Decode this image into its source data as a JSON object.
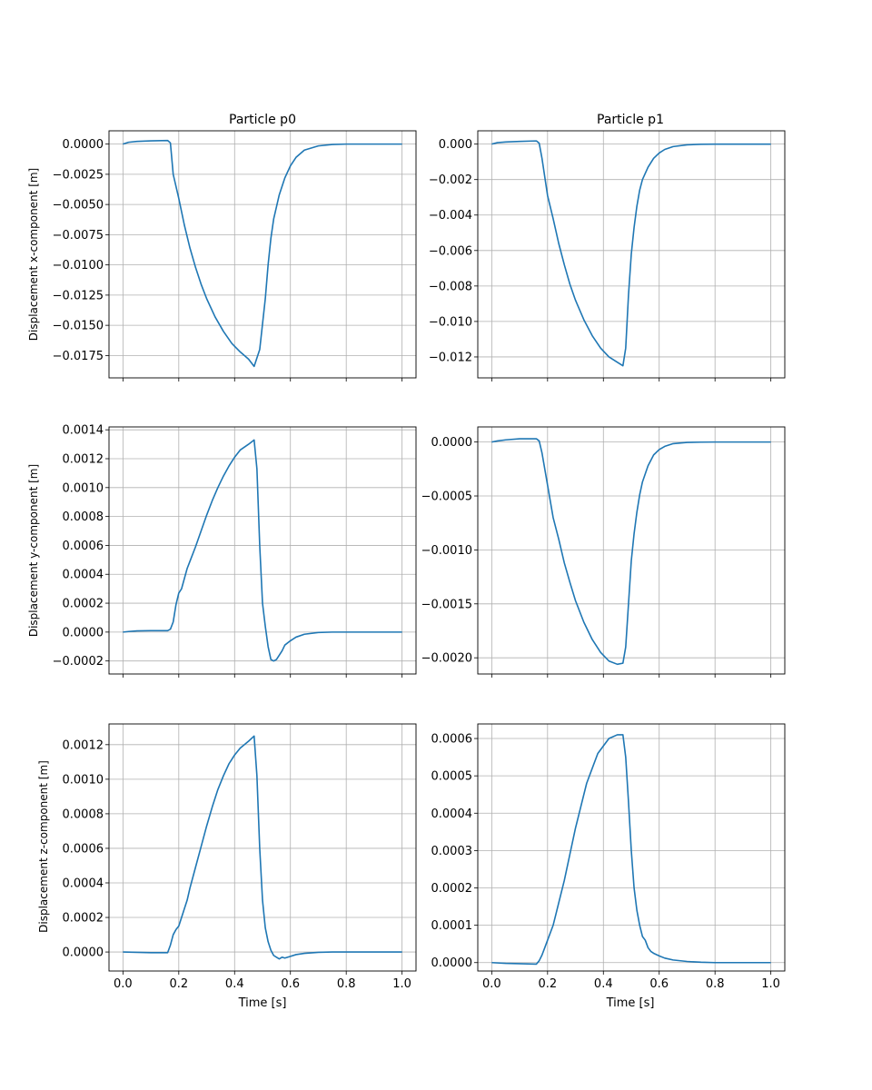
{
  "figure": {
    "line_color": "#1f77b4",
    "grid_color": "#b0b0b0"
  },
  "chart_data": [
    {
      "type": "line",
      "title": "Particle p0",
      "xlabel": "",
      "ylabel": "Displacement x-component [m]",
      "xlim": [
        -0.05,
        1.05
      ],
      "ylim": [
        -0.01935,
        0.0011
      ],
      "grid": true,
      "x_ticks": [
        "0.0",
        "0.2",
        "0.4",
        "0.6",
        "0.8",
        "1.0"
      ],
      "x_tick_labels_visible": false,
      "y_ticks": [
        "0.0000",
        "−0.0025",
        "−0.0050",
        "−0.0075",
        "−0.0100",
        "−0.0125",
        "−0.0150",
        "−0.0175"
      ],
      "y_tick_values": [
        0.0,
        -0.0025,
        -0.005,
        -0.0075,
        -0.01,
        -0.0125,
        -0.015,
        -0.0175
      ],
      "series": [
        {
          "x": [
            0.0,
            0.02,
            0.05,
            0.1,
            0.16,
            0.17,
            0.18,
            0.2,
            0.22,
            0.24,
            0.26,
            0.28,
            0.3,
            0.33,
            0.36,
            0.39,
            0.42,
            0.45,
            0.47,
            0.49,
            0.51,
            0.52,
            0.53,
            0.54,
            0.56,
            0.58,
            0.6,
            0.62,
            0.65,
            0.7,
            0.75,
            0.8,
            0.9,
            1.0
          ],
          "y": [
            0.0,
            0.00015,
            0.00022,
            0.00027,
            0.0003,
            0.0001,
            -0.0025,
            -0.0045,
            -0.0067,
            -0.0086,
            -0.0102,
            -0.0116,
            -0.0128,
            -0.0143,
            -0.0155,
            -0.0165,
            -0.0172,
            -0.0178,
            -0.0184,
            -0.017,
            -0.0128,
            -0.01,
            -0.0078,
            -0.0062,
            -0.0042,
            -0.0028,
            -0.0018,
            -0.0011,
            -0.0005,
            -0.00015,
            -3e-05,
            0.0,
            0.0,
            0.0
          ]
        }
      ]
    },
    {
      "type": "line",
      "title": "Particle p1",
      "xlabel": "",
      "ylabel": "",
      "xlim": [
        -0.05,
        1.05
      ],
      "ylim": [
        -0.01318,
        0.00075
      ],
      "grid": true,
      "x_ticks": [
        "0.0",
        "0.2",
        "0.4",
        "0.6",
        "0.8",
        "1.0"
      ],
      "x_tick_labels_visible": false,
      "y_ticks": [
        "0.000",
        "−0.002",
        "−0.004",
        "−0.006",
        "−0.008",
        "−0.010",
        "−0.012"
      ],
      "y_tick_values": [
        0.0,
        -0.002,
        -0.004,
        -0.006,
        -0.008,
        -0.01,
        -0.012
      ],
      "series": [
        {
          "x": [
            0.0,
            0.02,
            0.05,
            0.1,
            0.16,
            0.17,
            0.18,
            0.2,
            0.22,
            0.24,
            0.26,
            0.28,
            0.3,
            0.33,
            0.36,
            0.39,
            0.42,
            0.45,
            0.47,
            0.48,
            0.49,
            0.5,
            0.51,
            0.52,
            0.53,
            0.54,
            0.56,
            0.58,
            0.6,
            0.62,
            0.65,
            0.7,
            0.75,
            0.8,
            0.9,
            1.0
          ],
          "y": [
            0.0,
            8e-05,
            0.00012,
            0.00015,
            0.00018,
            5e-05,
            -0.0008,
            -0.0029,
            -0.0042,
            -0.0056,
            -0.0068,
            -0.0079,
            -0.0088,
            -0.0099,
            -0.0108,
            -0.0115,
            -0.012,
            -0.0123,
            -0.0125,
            -0.0115,
            -0.0085,
            -0.0062,
            -0.0047,
            -0.0035,
            -0.0026,
            -0.002,
            -0.0013,
            -0.0008,
            -0.0005,
            -0.0003,
            -0.00014,
            -4e-05,
            -1e-05,
            0.0,
            0.0,
            0.0
          ]
        }
      ]
    },
    {
      "type": "line",
      "title": "",
      "xlabel": "",
      "ylabel": "Displacement y-component [m]",
      "xlim": [
        -0.05,
        1.05
      ],
      "ylim": [
        -0.00029,
        0.00142
      ],
      "grid": true,
      "x_ticks": [
        "0.0",
        "0.2",
        "0.4",
        "0.6",
        "0.8",
        "1.0"
      ],
      "x_tick_labels_visible": false,
      "y_ticks": [
        "0.0014",
        "0.0012",
        "0.0010",
        "0.0008",
        "0.0006",
        "0.0004",
        "0.0002",
        "0.0000",
        "−0.0002"
      ],
      "y_tick_values": [
        0.0014,
        0.0012,
        0.001,
        0.0008,
        0.0006,
        0.0004,
        0.0002,
        0.0,
        -0.0002
      ],
      "series": [
        {
          "x": [
            0.0,
            0.02,
            0.05,
            0.1,
            0.16,
            0.17,
            0.18,
            0.19,
            0.2,
            0.21,
            0.22,
            0.23,
            0.24,
            0.26,
            0.28,
            0.3,
            0.32,
            0.34,
            0.36,
            0.38,
            0.4,
            0.42,
            0.45,
            0.47,
            0.48,
            0.49,
            0.5,
            0.51,
            0.52,
            0.53,
            0.54,
            0.55,
            0.56,
            0.57,
            0.58,
            0.6,
            0.62,
            0.65,
            0.7,
            0.75,
            0.8,
            0.9,
            1.0
          ],
          "y": [
            0.0,
            4e-06,
            8e-06,
            1e-05,
            1e-05,
            2e-05,
            7e-05,
            0.00019,
            0.00027,
            0.0003,
            0.00037,
            0.00044,
            0.00049,
            0.00059,
            0.0007,
            0.00081,
            0.00091,
            0.001,
            0.00108,
            0.00115,
            0.00121,
            0.00126,
            0.0013,
            0.00133,
            0.00113,
            0.0006,
            0.0002,
            4e-05,
            -0.0001,
            -0.00019,
            -0.0002,
            -0.00019,
            -0.00016,
            -0.00013,
            -9e-05,
            -6e-05,
            -3.5e-05,
            -1.5e-05,
            -3e-06,
            0.0,
            0.0,
            0.0,
            0.0
          ]
        }
      ]
    },
    {
      "type": "line",
      "title": "",
      "xlabel": "",
      "ylabel": "",
      "xlim": [
        -0.05,
        1.05
      ],
      "ylim": [
        -0.00215,
        0.00014
      ],
      "grid": true,
      "x_ticks": [
        "0.0",
        "0.2",
        "0.4",
        "0.6",
        "0.8",
        "1.0"
      ],
      "x_tick_labels_visible": false,
      "y_ticks": [
        "0.0000",
        "−0.0005",
        "−0.0010",
        "−0.0015",
        "−0.0020"
      ],
      "y_tick_values": [
        0.0,
        -0.0005,
        -0.001,
        -0.0015,
        -0.002
      ],
      "series": [
        {
          "x": [
            0.0,
            0.02,
            0.05,
            0.1,
            0.16,
            0.17,
            0.18,
            0.2,
            0.22,
            0.24,
            0.26,
            0.28,
            0.3,
            0.33,
            0.36,
            0.39,
            0.42,
            0.45,
            0.47,
            0.48,
            0.49,
            0.5,
            0.51,
            0.52,
            0.53,
            0.54,
            0.56,
            0.58,
            0.6,
            0.62,
            0.65,
            0.7,
            0.75,
            0.8,
            0.9,
            1.0
          ],
          "y": [
            0.0,
            1e-05,
            2e-05,
            3e-05,
            3e-05,
            1e-05,
            -0.0001,
            -0.0004,
            -0.0007,
            -0.0009,
            -0.00112,
            -0.0013,
            -0.00147,
            -0.00167,
            -0.00183,
            -0.00195,
            -0.00203,
            -0.00206,
            -0.00205,
            -0.0019,
            -0.0015,
            -0.0011,
            -0.00085,
            -0.00065,
            -0.00049,
            -0.00037,
            -0.00022,
            -0.00012,
            -7e-05,
            -4e-05,
            -1.5e-05,
            -4e-06,
            -1e-06,
            0.0,
            0.0,
            0.0
          ]
        }
      ]
    },
    {
      "type": "line",
      "title": "",
      "xlabel": "Time [s]",
      "ylabel": "Displacement z-component [m]",
      "xlim": [
        -0.05,
        1.05
      ],
      "ylim": [
        -0.00011,
        0.00132
      ],
      "grid": true,
      "x_ticks": [
        "0.0",
        "0.2",
        "0.4",
        "0.6",
        "0.8",
        "1.0"
      ],
      "x_tick_labels_visible": true,
      "y_ticks": [
        "0.0012",
        "0.0010",
        "0.0008",
        "0.0006",
        "0.0004",
        "0.0002",
        "0.0000"
      ],
      "y_tick_values": [
        0.0012,
        0.001,
        0.0008,
        0.0006,
        0.0004,
        0.0002,
        0.0
      ],
      "series": [
        {
          "x": [
            0.0,
            0.05,
            0.1,
            0.16,
            0.17,
            0.18,
            0.19,
            0.2,
            0.21,
            0.22,
            0.23,
            0.24,
            0.26,
            0.28,
            0.3,
            0.32,
            0.34,
            0.36,
            0.38,
            0.4,
            0.42,
            0.45,
            0.47,
            0.48,
            0.49,
            0.5,
            0.51,
            0.52,
            0.53,
            0.54,
            0.55,
            0.56,
            0.57,
            0.58,
            0.6,
            0.62,
            0.65,
            0.7,
            0.75,
            0.8,
            0.9,
            1.0
          ],
          "y": [
            0.0,
            -2e-06,
            -4e-06,
            -4e-06,
            4e-05,
            0.0001,
            0.00013,
            0.00015,
            0.0002,
            0.00025,
            0.0003,
            0.00037,
            0.00049,
            0.00061,
            0.00073,
            0.00084,
            0.00094,
            0.00102,
            0.00109,
            0.00114,
            0.00118,
            0.00122,
            0.00125,
            0.00102,
            0.0006,
            0.0003,
            0.00014,
            6e-05,
            1e-05,
            -2e-05,
            -3e-05,
            -4e-05,
            -3e-05,
            -3.5e-05,
            -2.5e-05,
            -1.5e-05,
            -8e-06,
            -2e-06,
            0.0,
            0.0,
            0.0,
            0.0
          ]
        }
      ]
    },
    {
      "type": "line",
      "title": "",
      "xlabel": "Time [s]",
      "ylabel": "",
      "xlim": [
        -0.05,
        1.05
      ],
      "ylim": [
        -2.25e-05,
        0.000639
      ],
      "grid": true,
      "x_ticks": [
        "0.0",
        "0.2",
        "0.4",
        "0.6",
        "0.8",
        "1.0"
      ],
      "x_tick_labels_visible": true,
      "y_ticks": [
        "0.0006",
        "0.0005",
        "0.0004",
        "0.0003",
        "0.0002",
        "0.0001",
        "0.0000"
      ],
      "y_tick_values": [
        0.0006,
        0.0005,
        0.0004,
        0.0003,
        0.0002,
        0.0001,
        0.0
      ],
      "series": [
        {
          "x": [
            0.0,
            0.05,
            0.1,
            0.16,
            0.17,
            0.18,
            0.19,
            0.2,
            0.21,
            0.22,
            0.23,
            0.24,
            0.26,
            0.28,
            0.3,
            0.32,
            0.34,
            0.36,
            0.38,
            0.4,
            0.42,
            0.45,
            0.47,
            0.48,
            0.49,
            0.5,
            0.51,
            0.52,
            0.53,
            0.54,
            0.55,
            0.56,
            0.57,
            0.58,
            0.6,
            0.62,
            0.65,
            0.7,
            0.75,
            0.8,
            0.9,
            1.0
          ],
          "y": [
            0.0,
            -2e-06,
            -3e-06,
            -4e-06,
            5e-06,
            2e-05,
            4e-05,
            6e-05,
            8e-05,
            0.0001,
            0.00013,
            0.00016,
            0.00022,
            0.00029,
            0.00036,
            0.00042,
            0.00048,
            0.00052,
            0.00056,
            0.00058,
            0.0006,
            0.00061,
            0.00061,
            0.00055,
            0.00043,
            0.0003,
            0.0002,
            0.00014,
            0.0001,
            7e-05,
            6e-05,
            4e-05,
            3e-05,
            2.5e-05,
            1.8e-05,
            1.2e-05,
            7e-06,
            3e-06,
            1e-06,
            0.0,
            0.0,
            0.0
          ]
        }
      ]
    }
  ]
}
